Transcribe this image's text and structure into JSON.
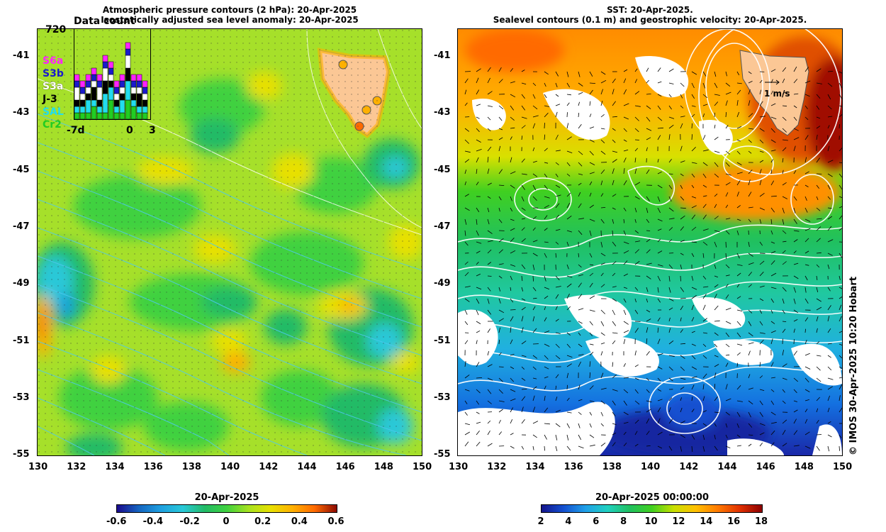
{
  "left_panel": {
    "title_line1": "Atmospheric pressure contours (2 hPa): 20-Apr-2025",
    "title_line2": "Isostatically adjusted sea level anomaly: 20-Apr-2025",
    "lat_labels": [
      "-41",
      "-43",
      "-45",
      "-47",
      "-49",
      "-51",
      "-53",
      "-55"
    ],
    "lon_labels": [
      "130",
      "132",
      "134",
      "136",
      "138",
      "140",
      "142",
      "144",
      "146",
      "148",
      "150"
    ],
    "colorbar": {
      "title": "20-Apr-2025",
      "ticks": [
        "-0.6",
        "-0.4",
        "-0.2",
        "0",
        "0.2",
        "0.4",
        "0.6"
      ]
    }
  },
  "inset": {
    "title": "Data count",
    "ymax_label": "720",
    "x_labels": [
      "-7d",
      "0",
      "3"
    ],
    "legend": [
      {
        "label": "S6a",
        "color": "#ff22ff"
      },
      {
        "label": "S3b",
        "color": "#1a1acc"
      },
      {
        "label": "S3a",
        "color": "#ffffff"
      },
      {
        "label": "J-3",
        "color": "#000000"
      },
      {
        "label": "SAL",
        "color": "#22ddee"
      },
      {
        "label": "Cr2",
        "color": "#22cc22"
      }
    ],
    "bars": [
      [
        1,
        1,
        1,
        2,
        1,
        1
      ],
      [
        1,
        1,
        1,
        1,
        1,
        1
      ],
      [
        1,
        2,
        1,
        1,
        1,
        1
      ],
      [
        2,
        1,
        2,
        1,
        1,
        1
      ],
      [
        1,
        1,
        1,
        2,
        1,
        1
      ],
      [
        1,
        3,
        2,
        2,
        1,
        1
      ],
      [
        3,
        2,
        1,
        1,
        1,
        1
      ],
      [
        1,
        1,
        1,
        1,
        1,
        1
      ],
      [
        1,
        2,
        1,
        1,
        1,
        1
      ],
      [
        3,
        3,
        2,
        2,
        1,
        1
      ],
      [
        2,
        1,
        1,
        1,
        1,
        1
      ],
      [
        1,
        1,
        2,
        1,
        1,
        1
      ],
      [
        1,
        1,
        1,
        1,
        1,
        1
      ]
    ]
  },
  "right_panel": {
    "title_line1": "SST: 20-Apr-2025.",
    "title_line2": "Sealevel contours (0.1 m) and geostrophic velocity: 20-Apr-2025.",
    "lat_labels": [
      "-41",
      "-43",
      "-45",
      "-47",
      "-49",
      "-51",
      "-53",
      "-55"
    ],
    "lon_labels": [
      "130",
      "132",
      "134",
      "136",
      "138",
      "140",
      "142",
      "144",
      "146",
      "148",
      "150"
    ],
    "velocity_label": "1 m/s",
    "colorbar": {
      "title": "20-Apr-2025 00:00:00",
      "ticks": [
        "2",
        "4",
        "6",
        "8",
        "10",
        "12",
        "14",
        "16",
        "18"
      ]
    },
    "credit": "© IMOS 30-Apr-2025 10:20 Hobart"
  },
  "colors": {
    "land": "#fbc795",
    "sla_ramp": [
      "#1a0a8c",
      "#1565c0",
      "#1fa0e0",
      "#29c8d8",
      "#22bb66",
      "#3fd13f",
      "#a7e21f",
      "#e8e000",
      "#ffb000",
      "#ff6a00",
      "#8c0a00"
    ],
    "sst_ramp": [
      "#14148c",
      "#1450d0",
      "#20a0e8",
      "#20d0c0",
      "#20c060",
      "#40d020",
      "#c8e000",
      "#ffc000",
      "#ff7a00",
      "#e03000",
      "#8c0000"
    ]
  }
}
